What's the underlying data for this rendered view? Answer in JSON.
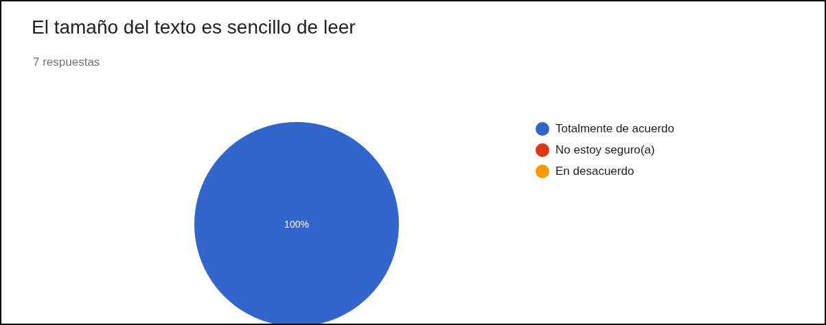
{
  "chart_data": {
    "type": "pie",
    "title": "El tamaño del texto es sencillo de leer",
    "subtitle": "7 respuestas",
    "categories": [
      "Totalmente de acuerdo",
      "No estoy seguro(a)",
      "En desacuerdo"
    ],
    "values": [
      100,
      0,
      0
    ],
    "colors": [
      "#3366cc",
      "#dc3912",
      "#ff9900"
    ],
    "value_labels": [
      "100%",
      null,
      null
    ],
    "legend": "right"
  }
}
